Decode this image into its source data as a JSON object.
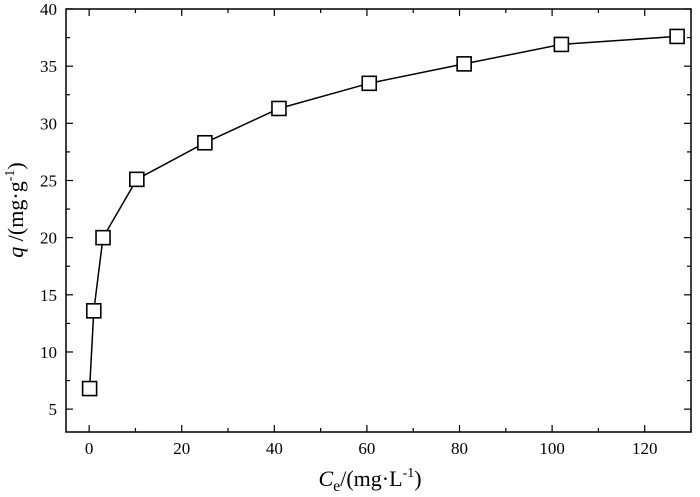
{
  "chart_data": {
    "type": "line",
    "title": "",
    "xlabel": {
      "main": "C",
      "sub": "e",
      "unit_open": "/(mg·L",
      "unit_sup": "-1",
      "unit_close": ")"
    },
    "ylabel": {
      "main": "q",
      "unit_open": " /(mg·g",
      "unit_sup": "-1",
      "unit_close": ")"
    },
    "xlim": [
      -5,
      130
    ],
    "ylim": [
      3,
      40
    ],
    "xticks": [
      0,
      20,
      40,
      60,
      80,
      100,
      120
    ],
    "yticks": [
      5,
      10,
      15,
      20,
      25,
      30,
      35,
      40
    ],
    "grid": false,
    "marker": "open-square",
    "series": [
      {
        "x": [
          0.1,
          1.0,
          3.0,
          10.3,
          25.0,
          41.0,
          60.5,
          81.0,
          102.0,
          127.0
        ],
        "y": [
          6.8,
          13.6,
          20.0,
          25.1,
          28.3,
          31.3,
          33.5,
          35.2,
          36.9,
          37.6
        ]
      }
    ]
  }
}
